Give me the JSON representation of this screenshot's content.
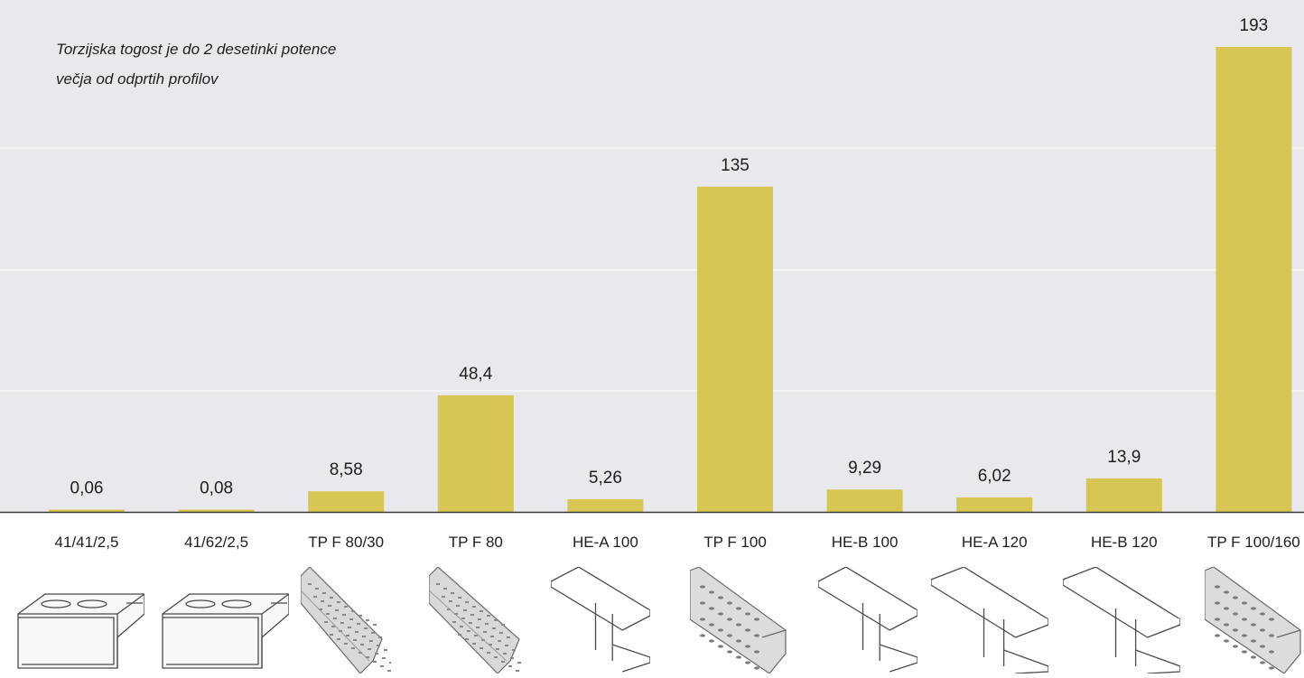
{
  "chart_data": {
    "type": "bar",
    "title_lines": [
      "Torzijska togost je do 2 desetinki potence",
      "večja od odprtih profilov"
    ],
    "categories": [
      "41/41/2,5",
      "41/62/2,5",
      "TP F 80/30",
      "TP F 80",
      "HE-A 100",
      "TP F 100",
      "HE-B 100",
      "HE-A 120",
      "HE-B 120",
      "TP F 100/160"
    ],
    "values": [
      0.06,
      0.08,
      8.58,
      48.4,
      5.26,
      135,
      9.29,
      6.02,
      13.9,
      193
    ],
    "value_labels": [
      "0,06",
      "0,08",
      "8,58",
      "48,4",
      "5,26",
      "135",
      "9,29",
      "6,02",
      "13,9",
      "193"
    ],
    "grid": true,
    "ylim": [
      0,
      205
    ],
    "bar_color": "#d7c654",
    "background_color": "#e9e8ed"
  },
  "profile_icons": [
    "c-channel-slotted-icon",
    "c-channel-slotted-deep-icon",
    "perforated-channel-icon",
    "perforated-channel-large-icon",
    "i-beam-icon",
    "perforated-box-channel-icon",
    "i-beam-icon",
    "i-beam-wide-icon",
    "i-beam-wide-icon",
    "perforated-box-channel-icon"
  ]
}
